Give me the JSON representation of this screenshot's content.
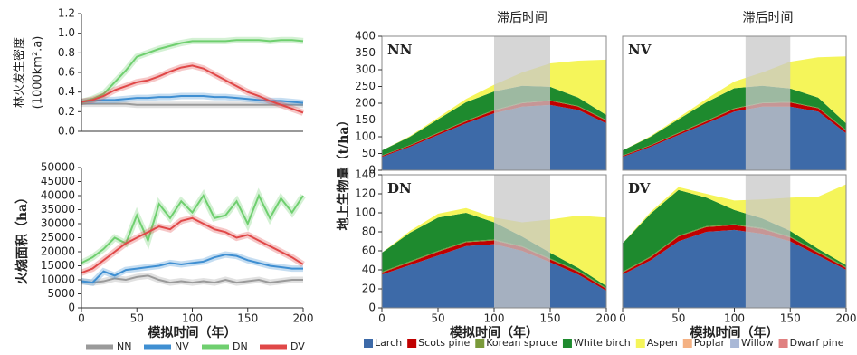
{
  "chart_data": [
    {
      "type": "line",
      "ylabel": [
        "林火发生密度",
        "(1000km².a)"
      ],
      "x": [
        0,
        10,
        20,
        30,
        40,
        50,
        60,
        70,
        80,
        90,
        100,
        110,
        120,
        130,
        140,
        150,
        160,
        170,
        180,
        190,
        200
      ],
      "xlim": [
        0,
        200
      ],
      "ylim": [
        0,
        1.2
      ],
      "yticks": [
        {
          "value": 0,
          "label": "0.0"
        },
        0.2,
        0.4,
        0.6,
        0.8,
        {
          "value": 1,
          "label": "1.0"
        },
        1.2
      ],
      "series": [
        {
          "color": "#9a9a9a",
          "values": [
            0.28,
            0.28,
            0.28,
            0.28,
            0.28,
            0.27,
            0.27,
            0.27,
            0.27,
            0.27,
            0.27,
            0.27,
            0.27,
            0.27,
            0.27,
            0.27,
            0.27,
            0.27,
            0.27,
            0.27,
            0.27
          ]
        },
        {
          "color": "#3f8fd2",
          "values": [
            0.3,
            0.31,
            0.32,
            0.32,
            0.33,
            0.34,
            0.34,
            0.35,
            0.35,
            0.36,
            0.36,
            0.36,
            0.35,
            0.35,
            0.34,
            0.33,
            0.32,
            0.31,
            0.31,
            0.3,
            0.29
          ]
        },
        {
          "color": "#6fcf6f",
          "values": [
            0.3,
            0.33,
            0.38,
            0.5,
            0.62,
            0.76,
            0.8,
            0.84,
            0.87,
            0.9,
            0.92,
            0.92,
            0.92,
            0.92,
            0.93,
            0.93,
            0.93,
            0.92,
            0.93,
            0.93,
            0.92
          ]
        },
        {
          "color": "#e04848",
          "values": [
            0.3,
            0.32,
            0.36,
            0.42,
            0.46,
            0.5,
            0.52,
            0.56,
            0.61,
            0.65,
            0.67,
            0.64,
            0.58,
            0.52,
            0.46,
            0.4,
            0.36,
            0.31,
            0.27,
            0.23,
            0.19
          ]
        }
      ]
    },
    {
      "type": "line",
      "ylabel": "火烧面积（ha）",
      "xlabel": "模拟时间（年）",
      "x": [
        0,
        10,
        20,
        30,
        40,
        50,
        60,
        70,
        80,
        90,
        100,
        110,
        120,
        130,
        140,
        150,
        160,
        170,
        180,
        190,
        200
      ],
      "xlim": [
        0,
        200
      ],
      "xticks": [
        0,
        50,
        100,
        150,
        200
      ],
      "ylim": [
        0,
        50000
      ],
      "yticks": [
        0,
        5000,
        10000,
        15000,
        20000,
        25000,
        30000,
        35000,
        40000,
        45000,
        50000
      ],
      "series": [
        {
          "name": "NN",
          "color": "#9a9a9a",
          "values": [
            9500,
            9000,
            9500,
            10500,
            10000,
            11000,
            11500,
            10000,
            9000,
            9500,
            9000,
            9500,
            9000,
            10000,
            9000,
            9500,
            10000,
            9000,
            9500,
            10000,
            10000
          ]
        },
        {
          "name": "NV",
          "color": "#3f8fd2",
          "values": [
            9500,
            9000,
            13000,
            11500,
            13500,
            14000,
            14500,
            15000,
            16000,
            15500,
            16000,
            16500,
            18000,
            19000,
            18500,
            17000,
            16000,
            15000,
            14500,
            14000,
            14000
          ]
        },
        {
          "name": "DN",
          "color": "#6fcf6f",
          "values": [
            16000,
            18000,
            21000,
            25000,
            23000,
            33000,
            24000,
            37000,
            32000,
            38000,
            34000,
            40000,
            32000,
            33000,
            38000,
            30000,
            40000,
            32000,
            39000,
            34000,
            40000
          ]
        },
        {
          "name": "DV",
          "color": "#e04848",
          "values": [
            12500,
            14000,
            17000,
            20000,
            23000,
            25000,
            27000,
            29000,
            28000,
            31000,
            32000,
            30000,
            28000,
            27000,
            25000,
            26000,
            24000,
            22000,
            20000,
            18000,
            15500
          ]
        }
      ]
    },
    {
      "type": "area",
      "label": "NN",
      "lag_title": "滞后时间",
      "lag": [
        100,
        150
      ],
      "ylabel": "地上生物量（t/ha）",
      "x": [
        0,
        25,
        50,
        75,
        100,
        125,
        150,
        175,
        200
      ],
      "xlim": [
        0,
        200
      ],
      "ylim": [
        0,
        400
      ],
      "yticks": [
        0,
        50,
        100,
        150,
        200,
        250,
        300,
        350,
        400
      ],
      "series": [
        {
          "color": "#3d6aa8",
          "values": [
            40,
            70,
            105,
            140,
            170,
            190,
            195,
            180,
            140
          ]
        },
        {
          "color": "#c00000",
          "values": [
            3,
            4,
            5,
            6,
            8,
            10,
            12,
            10,
            8
          ]
        },
        {
          "color": "#7a9a3a",
          "values": [
            1,
            1,
            2,
            2,
            2,
            2,
            2,
            2,
            2
          ]
        },
        {
          "color": "#1e8a2e",
          "values": [
            15,
            25,
            40,
            55,
            55,
            50,
            40,
            25,
            15
          ]
        },
        {
          "color": "#f5f55a",
          "values": [
            0,
            2,
            5,
            10,
            20,
            40,
            70,
            110,
            165
          ]
        }
      ]
    },
    {
      "type": "area",
      "label": "NV",
      "lag_title": "滞后时间",
      "lag": [
        110,
        150
      ],
      "x": [
        0,
        25,
        50,
        75,
        100,
        125,
        150,
        175,
        200
      ],
      "xlim": [
        0,
        200
      ],
      "ylim": [
        0,
        400
      ],
      "series": [
        {
          "color": "#3d6aa8",
          "values": [
            40,
            70,
            105,
            140,
            175,
            190,
            190,
            175,
            110
          ]
        },
        {
          "color": "#c00000",
          "values": [
            3,
            4,
            5,
            6,
            8,
            10,
            12,
            10,
            8
          ]
        },
        {
          "color": "#7a9a3a",
          "values": [
            1,
            1,
            2,
            2,
            2,
            2,
            2,
            2,
            2
          ]
        },
        {
          "color": "#1e8a2e",
          "values": [
            15,
            25,
            40,
            55,
            60,
            50,
            40,
            30,
            20
          ]
        },
        {
          "color": "#f5f55a",
          "values": [
            0,
            2,
            5,
            10,
            20,
            40,
            80,
            120,
            200
          ]
        }
      ]
    },
    {
      "type": "area",
      "label": "DN",
      "lag": [
        100,
        150
      ],
      "xlabel": "模拟时间（年）",
      "x": [
        0,
        25,
        50,
        75,
        100,
        125,
        150,
        175,
        200
      ],
      "xlim": [
        0,
        200
      ],
      "xticks": [
        0,
        50,
        100,
        150,
        200
      ],
      "ylim": [
        0,
        140
      ],
      "yticks": [
        0,
        20,
        40,
        60,
        80,
        100,
        120,
        140
      ],
      "series": [
        {
          "name": "Larch",
          "color": "#3d6aa8",
          "values": [
            35,
            45,
            55,
            65,
            67,
            60,
            48,
            35,
            18
          ]
        },
        {
          "name": "Scots pine",
          "color": "#c00000",
          "values": [
            2,
            3,
            4,
            4,
            4,
            4,
            3,
            3,
            2
          ]
        },
        {
          "name": "Korean spruce",
          "color": "#7a9a3a",
          "values": [
            1,
            1,
            1,
            1,
            1,
            1,
            1,
            1,
            1
          ]
        },
        {
          "name": "White birch",
          "color": "#1e8a2e",
          "values": [
            20,
            30,
            35,
            30,
            18,
            10,
            6,
            3,
            2
          ]
        },
        {
          "name": "Aspen",
          "color": "#f5f55a",
          "values": [
            0,
            2,
            4,
            5,
            5,
            15,
            35,
            55,
            72
          ]
        },
        {
          "name": "Poplar",
          "color": "#f4b183",
          "values": [
            0,
            0,
            0,
            0,
            0,
            0,
            0,
            0,
            0
          ]
        },
        {
          "name": "Willow",
          "color": "#a9b8d6",
          "values": [
            0,
            0,
            0,
            0,
            0,
            0,
            0,
            0,
            0
          ]
        },
        {
          "name": "Dwarf pine",
          "color": "#e08080",
          "values": [
            0,
            0,
            0,
            0,
            0,
            0,
            0,
            0,
            0
          ]
        }
      ]
    },
    {
      "type": "area",
      "label": "DV",
      "lag": [
        110,
        150
      ],
      "xlabel": "模拟时间（年）",
      "x": [
        0,
        25,
        50,
        75,
        100,
        125,
        150,
        175,
        200
      ],
      "xlim": [
        0,
        200
      ],
      "xticks": [
        0,
        50,
        100,
        150,
        200
      ],
      "ylim": [
        0,
        140
      ],
      "series": [
        {
          "color": "#3d6aa8",
          "values": [
            35,
            50,
            70,
            80,
            82,
            78,
            70,
            55,
            40
          ]
        },
        {
          "color": "#c00000",
          "values": [
            2,
            3,
            5,
            5,
            5,
            5,
            4,
            3,
            2
          ]
        },
        {
          "color": "#7a9a3a",
          "values": [
            1,
            1,
            1,
            1,
            1,
            1,
            1,
            1,
            1
          ]
        },
        {
          "color": "#1e8a2e",
          "values": [
            30,
            45,
            48,
            30,
            15,
            10,
            6,
            3,
            2
          ]
        },
        {
          "color": "#f5f55a",
          "values": [
            0,
            2,
            3,
            4,
            10,
            20,
            35,
            55,
            85
          ]
        }
      ]
    }
  ]
}
